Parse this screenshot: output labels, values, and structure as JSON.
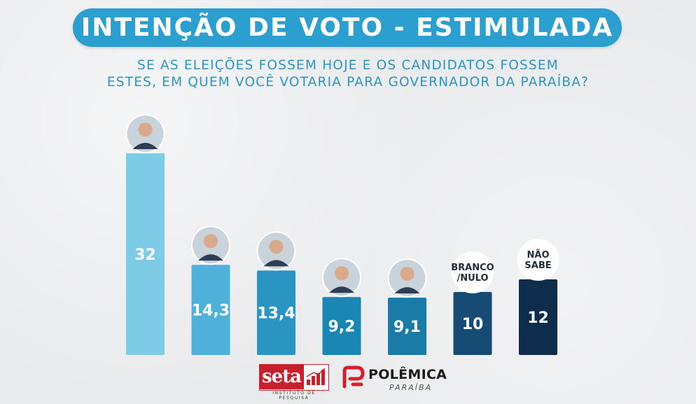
{
  "title": "INTENÇÃO DE VOTO - ESTIMULADA",
  "question": {
    "line1": "SE AS ELEIÇÕES FOSSEM HOJE E OS CANDIDATOS FOSSEM",
    "line2": "ESTES, EM QUEM VOCÊ VOTARIA PARA GOVERNADOR DA PARAÍBA?"
  },
  "chart_data": {
    "type": "bar",
    "categories": [
      "",
      "",
      "",
      "",
      "",
      "BRANCO /NULO",
      "NÃO SABE"
    ],
    "values": [
      32,
      14.3,
      13.4,
      9.2,
      9.1,
      10,
      12
    ],
    "value_labels": [
      "32",
      "14,3",
      "13,4",
      "9,2",
      "9,1",
      "10",
      "12"
    ],
    "category_labels": [
      [],
      [],
      [],
      [],
      [],
      [
        "BRANCO",
        "/NULO"
      ],
      [
        "NÃO",
        "SABE"
      ]
    ],
    "photo_marker": [
      true,
      true,
      true,
      true,
      true,
      false,
      false
    ],
    "colors": [
      "#7ecbe8",
      "#4fb1d9",
      "#2a95c2",
      "#1a86b3",
      "#1a7ba7",
      "#164c74",
      "#0e2d4d"
    ],
    "title": "INTENÇÃO DE VOTO - ESTIMULADA",
    "xlabel": "",
    "ylabel": "",
    "grid": false,
    "legend": "none"
  },
  "logos": {
    "seta_word": "seta",
    "seta_subtitle": "INSTITUTO DE PESQUISA",
    "polemica_name": "POLÊMICA",
    "polemica_sub": "PARAÍBA"
  },
  "colors": {
    "title_bg": "#2a9fd0",
    "question_text": "#2b95c8",
    "seta_red": "#c8202a",
    "polemica_red": "#d61f2c"
  }
}
